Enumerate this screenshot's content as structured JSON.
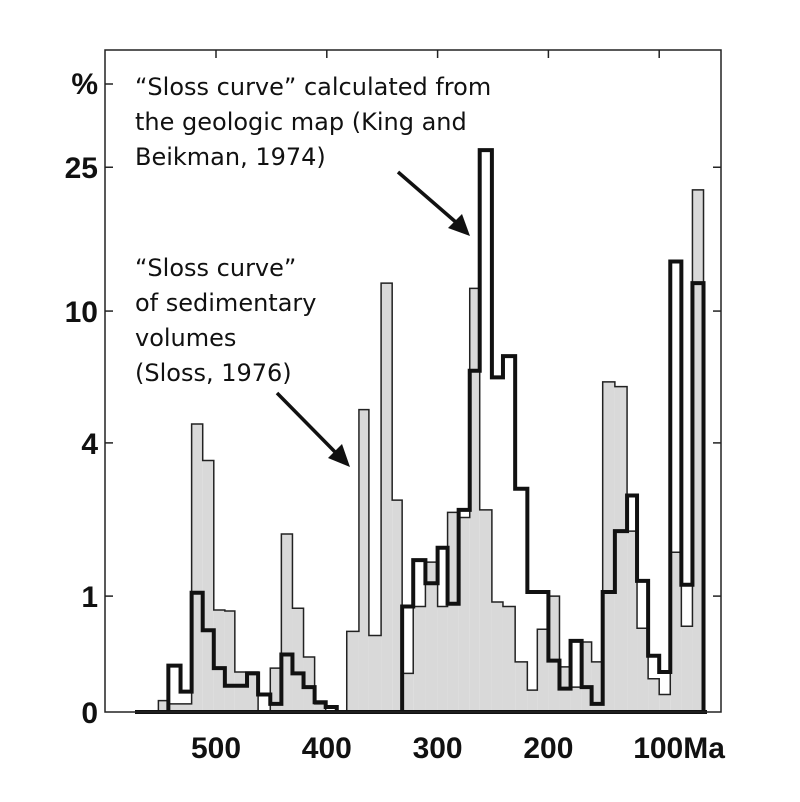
{
  "chart_data": {
    "type": "bar",
    "title": "",
    "xlabel": "",
    "ylabel": "%",
    "x_unit": "Ma",
    "x_reversed": true,
    "xlim": [
      600,
      45
    ],
    "y_scale": "log(1+y)",
    "ylim": [
      0,
      30
    ],
    "grid": false,
    "x_ticks": [
      500,
      400,
      300,
      200,
      100
    ],
    "x_tick_labels": [
      "500",
      "400",
      "300",
      "200",
      "100Ma"
    ],
    "y_ticks": [
      0,
      1,
      4,
      10,
      25
    ],
    "y_tick_labels": [
      "0",
      "1",
      "4",
      "10",
      "25"
    ],
    "series": [
      {
        "style": "gray filled histogram",
        "color": "#d9d9d9",
        "bins": [
          [
            552,
            543,
            0.07
          ],
          [
            543,
            522,
            0.05
          ],
          [
            522,
            512,
            4.6
          ],
          [
            512,
            502,
            3.5
          ],
          [
            502,
            492,
            0.84
          ],
          [
            492,
            483,
            0.83
          ],
          [
            483,
            462,
            0.27
          ],
          [
            451,
            441,
            0.3
          ],
          [
            441,
            431,
            1.9
          ],
          [
            431,
            421,
            0.86
          ],
          [
            421,
            411,
            0.39
          ],
          [
            411,
            401,
            0.05
          ],
          [
            382,
            371,
            0.62
          ],
          [
            371,
            362,
            5.1
          ],
          [
            362,
            351,
            0.58
          ],
          [
            351,
            341,
            12.0
          ],
          [
            341,
            332,
            2.55
          ],
          [
            332,
            322,
            0.26
          ],
          [
            322,
            311,
            0.88
          ],
          [
            311,
            300,
            1.45
          ],
          [
            300,
            291,
            0.88
          ],
          [
            291,
            281,
            2.3
          ],
          [
            281,
            271,
            2.2
          ],
          [
            271,
            262,
            11.6
          ],
          [
            262,
            251,
            2.35
          ],
          [
            251,
            241,
            0.93
          ],
          [
            241,
            230,
            0.88
          ],
          [
            230,
            219,
            0.35
          ],
          [
            219,
            210,
            0.14
          ],
          [
            210,
            200,
            0.64
          ],
          [
            200,
            190,
            1.0
          ],
          [
            190,
            180,
            0.31
          ],
          [
            180,
            170,
            0.16
          ],
          [
            170,
            161,
            0.52
          ],
          [
            161,
            151,
            0.35
          ],
          [
            151,
            140,
            6.2
          ],
          [
            140,
            129,
            6.0
          ],
          [
            129,
            120,
            1.95
          ],
          [
            120,
            110,
            0.65
          ],
          [
            110,
            100,
            0.22
          ],
          [
            100,
            90,
            0.11
          ],
          [
            90,
            80,
            1.6
          ],
          [
            80,
            70,
            0.67
          ],
          [
            70,
            60,
            21.7
          ]
        ]
      },
      {
        "style": "thick black step outline",
        "color": "#111111",
        "bins": [
          [
            543,
            532,
            0.32
          ],
          [
            532,
            522,
            0.13
          ],
          [
            522,
            512,
            1.04
          ],
          [
            512,
            502,
            0.63
          ],
          [
            502,
            492,
            0.3
          ],
          [
            492,
            472,
            0.17
          ],
          [
            472,
            462,
            0.26
          ],
          [
            462,
            451,
            0.11
          ],
          [
            451,
            441,
            0.05
          ],
          [
            441,
            431,
            0.41
          ],
          [
            431,
            421,
            0.26
          ],
          [
            421,
            411,
            0.16
          ],
          [
            411,
            401,
            0.06
          ],
          [
            401,
            391,
            0.03
          ],
          [
            332,
            322,
            0.88
          ],
          [
            322,
            311,
            1.48
          ],
          [
            311,
            300,
            1.16
          ],
          [
            300,
            291,
            1.67
          ],
          [
            291,
            281,
            0.91
          ],
          [
            281,
            271,
            2.35
          ],
          [
            271,
            262,
            6.7
          ],
          [
            262,
            251,
            27.8
          ],
          [
            251,
            241,
            6.4
          ],
          [
            241,
            230,
            7.4
          ],
          [
            230,
            219,
            2.8
          ],
          [
            219,
            200,
            1.05
          ],
          [
            200,
            190,
            0.36
          ],
          [
            190,
            180,
            0.15
          ],
          [
            180,
            170,
            0.53
          ],
          [
            170,
            161,
            0.16
          ],
          [
            161,
            151,
            0.05
          ],
          [
            151,
            140,
            1.05
          ],
          [
            140,
            129,
            1.95
          ],
          [
            129,
            120,
            2.65
          ],
          [
            120,
            110,
            1.19
          ],
          [
            110,
            100,
            0.4
          ],
          [
            100,
            90,
            0.27
          ],
          [
            90,
            80,
            13.8
          ],
          [
            80,
            70,
            1.14
          ],
          [
            70,
            60,
            12.0
          ]
        ]
      }
    ],
    "annotations": [
      {
        "lines": [
          "“Sloss curve” calculated from",
          "the geologic map (King and",
          "Beikman, 1974)"
        ],
        "arrow_to_series": 1
      },
      {
        "lines": [
          "“Sloss curve”",
          "of sedimentary",
          "volumes",
          "(Sloss, 1976)"
        ],
        "arrow_to_series": 0
      }
    ]
  }
}
